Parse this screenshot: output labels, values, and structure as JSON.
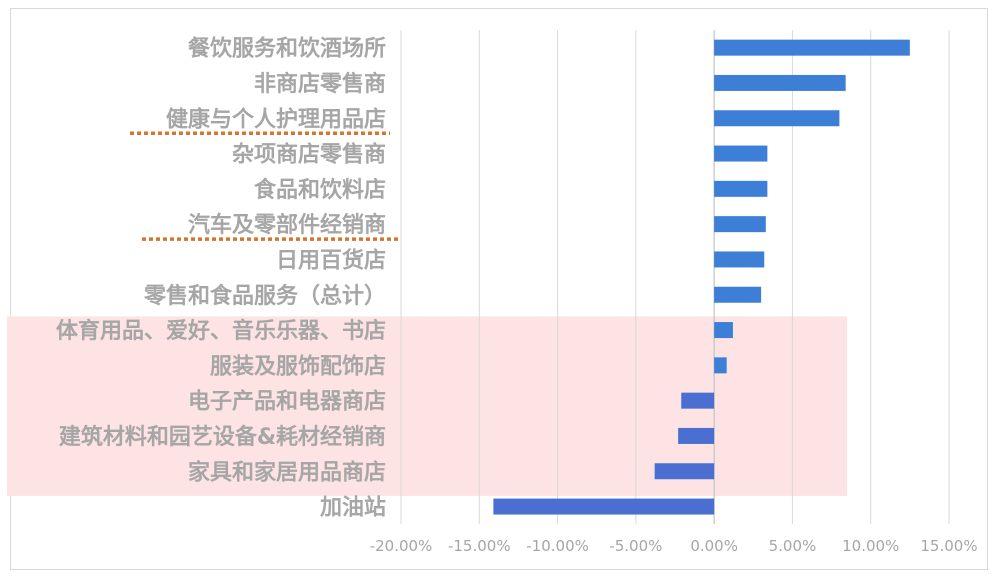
{
  "chart_data": {
    "type": "bar",
    "orientation": "horizontal",
    "categories": [
      "餐饮服务和饮酒场所",
      "非商店零售商",
      "健康与个人护理用品店",
      "杂项商店零售商",
      "食品和饮料店",
      "汽车及零部件经销商",
      "日用百货店",
      "零售和食品服务（总计）",
      "体育用品、爱好、音乐乐器、书店",
      "服装及服饰配饰店",
      "电子产品和电器商店",
      "建筑材料和园艺设备&耗材经销商",
      "家具和家居用品商店",
      "加油站"
    ],
    "values": [
      12.5,
      8.4,
      8.0,
      3.4,
      3.4,
      3.3,
      3.2,
      3.0,
      1.2,
      0.8,
      -2.1,
      -2.3,
      -3.8,
      -14.1
    ],
    "xlim": [
      -20,
      15
    ],
    "xticks": [
      "-20.00%",
      "-15.00%",
      "-10.00%",
      "-5.00%",
      "0.00%",
      "5.00%",
      "10.00%",
      "15.00%"
    ],
    "xtick_values": [
      -20,
      -15,
      -10,
      -5,
      0,
      5,
      10,
      15
    ],
    "grid": true,
    "bar_color": "#3d7fd6",
    "negative_bar_color": "#4a6fd0",
    "label_color": "#a6a6a6",
    "highlight_color": "#fde3e3",
    "underline_color": "#d4762c",
    "highlighted_categories": [
      "体育用品、爱好、音乐乐器、书店",
      "服装及服饰配饰店",
      "电子产品和电器商店",
      "建筑材料和园艺设备&耗材经销商",
      "家具和家居用品商店"
    ],
    "underlined_categories": [
      "健康与个人护理用品店",
      "汽车及零部件经销商"
    ]
  }
}
